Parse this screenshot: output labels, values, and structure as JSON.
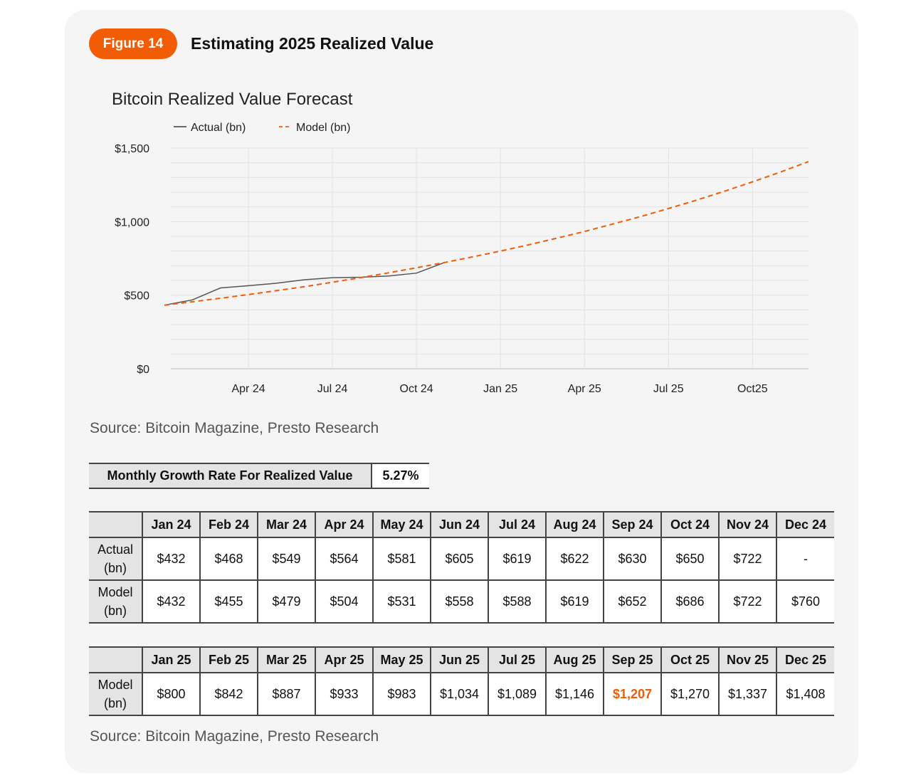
{
  "figure": {
    "badge": "Figure 14",
    "title": "Estimating 2025 Realized Value"
  },
  "colors": {
    "accent": "#f25c05",
    "actual_line": "#555555",
    "model_line": "#f25c05",
    "grid": "#e2e2e2",
    "card_bg": "#f5f5f5",
    "header_bg": "#e4e4e4"
  },
  "chart_data": {
    "type": "line",
    "title": "Bitcoin Realized Value Forecast",
    "legend_position": "top-left",
    "grid": true,
    "x": [
      "Jan 24",
      "Feb 24",
      "Mar 24",
      "Apr 24",
      "May 24",
      "Jun 24",
      "Jul 24",
      "Aug 24",
      "Sep 24",
      "Oct 24",
      "Nov 24",
      "Dec 24",
      "Jan 25",
      "Feb 25",
      "Mar 25",
      "Apr 25",
      "May 25",
      "Jun 25",
      "Jul 25",
      "Aug 25",
      "Sep 25",
      "Oct 25",
      "Nov 25",
      "Dec 25"
    ],
    "x_tick_labels": [
      "Apr 24",
      "Jul 24",
      "Oct 24",
      "Jan 25",
      "Apr 25",
      "Jul 25",
      "Oct25"
    ],
    "y_tick_labels": [
      "$1,500",
      "$1,000",
      "$500",
      "$0"
    ],
    "ylim": [
      0,
      1500
    ],
    "series": [
      {
        "name": "Actual (bn)",
        "style": "solid",
        "values": [
          432,
          468,
          549,
          564,
          581,
          605,
          619,
          622,
          630,
          650,
          722,
          null,
          null,
          null,
          null,
          null,
          null,
          null,
          null,
          null,
          null,
          null,
          null,
          null
        ]
      },
      {
        "name": "Model (bn)",
        "style": "dashed",
        "values": [
          432,
          455,
          479,
          504,
          531,
          558,
          588,
          619,
          652,
          686,
          722,
          760,
          800,
          842,
          887,
          933,
          983,
          1034,
          1089,
          1146,
          1207,
          1270,
          1337,
          1408
        ]
      }
    ]
  },
  "source_text_1": "Source: Bitcoin Magazine, Presto Research",
  "growth": {
    "label": "Monthly Growth Rate For Realized Value",
    "value": "5.27%"
  },
  "table_2024": {
    "months": [
      "Jan 24",
      "Feb 24",
      "Mar 24",
      "Apr 24",
      "May 24",
      "Jun 24",
      "Jul 24",
      "Aug 24",
      "Sep 24",
      "Oct 24",
      "Nov 24",
      "Dec 24"
    ],
    "rows": [
      {
        "label_line1": "Actual",
        "label_line2": "(bn)",
        "cells": [
          "$432",
          "$468",
          "$549",
          "$564",
          "$581",
          "$605",
          "$619",
          "$622",
          "$630",
          "$650",
          "$722",
          "-"
        ]
      },
      {
        "label_line1": "Model",
        "label_line2": "(bn)",
        "cells": [
          "$432",
          "$455",
          "$479",
          "$504",
          "$531",
          "$558",
          "$588",
          "$619",
          "$652",
          "$686",
          "$722",
          "$760"
        ]
      }
    ]
  },
  "table_2025": {
    "months": [
      "Jan 25",
      "Feb 25",
      "Mar 25",
      "Apr 25",
      "May 25",
      "Jun 25",
      "Jul 25",
      "Aug 25",
      "Sep 25",
      "Oct 25",
      "Nov 25",
      "Dec 25"
    ],
    "rows": [
      {
        "label_line1": "Model",
        "label_line2": "(bn)",
        "cells": [
          "$800",
          "$842",
          "$887",
          "$933",
          "$983",
          "$1,034",
          "$1,089",
          "$1,146",
          "$1,207",
          "$1,270",
          "$1,337",
          "$1,408"
        ],
        "highlight_index": 8
      }
    ]
  },
  "source_text_2": "Source: Bitcoin Magazine, Presto Research"
}
